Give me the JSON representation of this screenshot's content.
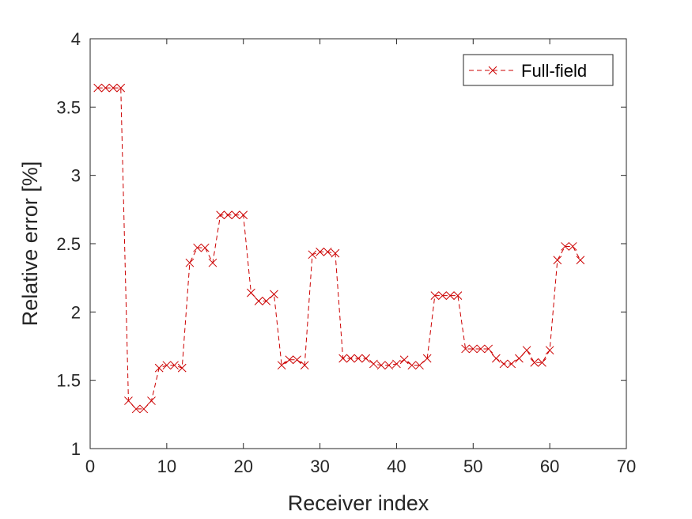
{
  "chart_data": {
    "type": "line",
    "title": "",
    "xlabel": "Receiver index",
    "ylabel": "Relative error [%]",
    "xlim": [
      0,
      70
    ],
    "ylim": [
      1,
      4
    ],
    "xticks": [
      0,
      10,
      20,
      30,
      40,
      50,
      60,
      70
    ],
    "yticks": [
      1,
      1.5,
      2,
      2.5,
      3,
      3.5,
      4
    ],
    "xtick_labels": [
      "0",
      "10",
      "20",
      "30",
      "40",
      "50",
      "60",
      "70"
    ],
    "ytick_labels": [
      "1",
      "1.5",
      "2",
      "2.5",
      "3",
      "3.5",
      "4"
    ],
    "grid": false,
    "legend_position": "top-right",
    "colors": {
      "series": "#cc0000",
      "axis": "#262626"
    },
    "series": [
      {
        "name": "Full-field",
        "line_style": "dashed",
        "marker": "x",
        "x": [
          1,
          2,
          3,
          4,
          5,
          6,
          7,
          8,
          9,
          10,
          11,
          12,
          13,
          14,
          15,
          16,
          17,
          18,
          19,
          20,
          21,
          22,
          23,
          24,
          25,
          26,
          27,
          28,
          29,
          30,
          31,
          32,
          33,
          34,
          35,
          36,
          37,
          38,
          39,
          40,
          41,
          42,
          43,
          44,
          45,
          46,
          47,
          48,
          49,
          50,
          51,
          52,
          53,
          54,
          55,
          56,
          57,
          58,
          59,
          60,
          61,
          62,
          63,
          64
        ],
        "y": [
          3.64,
          3.64,
          3.64,
          3.64,
          1.35,
          1.29,
          1.29,
          1.35,
          1.59,
          1.61,
          1.61,
          1.59,
          2.36,
          2.47,
          2.47,
          2.36,
          2.71,
          2.71,
          2.71,
          2.71,
          2.14,
          2.08,
          2.08,
          2.13,
          1.61,
          1.65,
          1.65,
          1.61,
          2.42,
          2.44,
          2.44,
          2.43,
          1.66,
          1.66,
          1.66,
          1.66,
          1.62,
          1.61,
          1.61,
          1.62,
          1.65,
          1.61,
          1.61,
          1.66,
          2.12,
          2.12,
          2.12,
          2.12,
          1.73,
          1.73,
          1.73,
          1.73,
          1.66,
          1.62,
          1.62,
          1.66,
          1.72,
          1.63,
          1.63,
          1.72,
          2.38,
          2.48,
          2.48,
          2.38
        ]
      }
    ]
  }
}
